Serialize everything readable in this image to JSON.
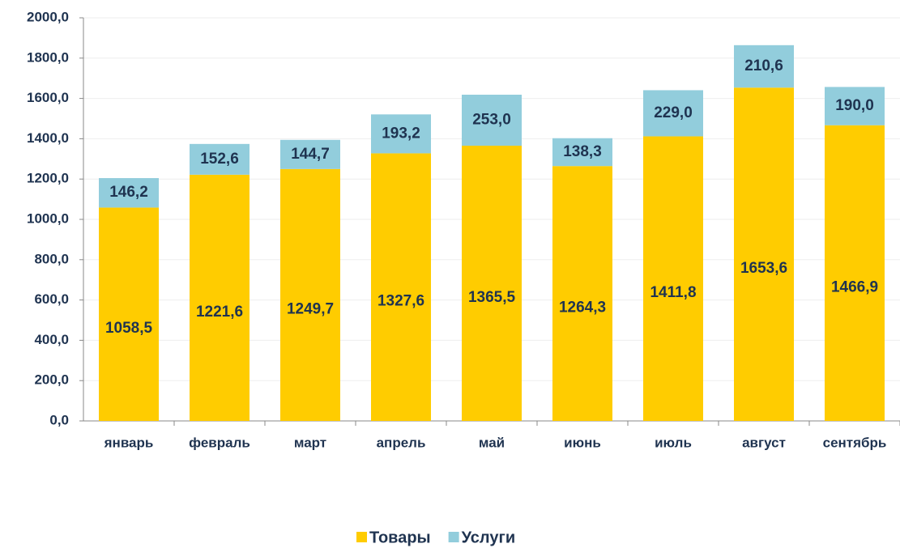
{
  "chart_data": {
    "type": "stacked_bar",
    "categories": [
      "январь",
      "февраль",
      "март",
      "апрель",
      "май",
      "июнь",
      "июль",
      "август",
      "сентябрь"
    ],
    "series": [
      {
        "name": "Товары",
        "color": "#ffcc00",
        "values": [
          1058.5,
          1221.6,
          1249.7,
          1327.6,
          1365.5,
          1264.3,
          1411.8,
          1653.6,
          1466.9
        ],
        "value_labels": [
          "1058,5",
          "1221,6",
          "1249,7",
          "1327,6",
          "1365,5",
          "1264,3",
          "1411,8",
          "1653,6",
          "1466,9"
        ]
      },
      {
        "name": "Услуги",
        "color": "#92cddc",
        "values": [
          146.2,
          152.6,
          144.7,
          193.2,
          253.0,
          138.3,
          229.0,
          210.6,
          190.0
        ],
        "value_labels": [
          "146,2",
          "152,6",
          "144,7",
          "193,2",
          "253,0",
          "138,3",
          "229,0",
          "210,6",
          "190,0"
        ]
      }
    ],
    "ylim": [
      0,
      2000
    ],
    "yticks": [
      {
        "value": 0,
        "label": "0,0"
      },
      {
        "value": 200,
        "label": "200,0"
      },
      {
        "value": 400,
        "label": "400,0"
      },
      {
        "value": 600,
        "label": "600,0"
      },
      {
        "value": 800,
        "label": "800,0"
      },
      {
        "value": 1000,
        "label": "1000,0"
      },
      {
        "value": 1200,
        "label": "1200,0"
      },
      {
        "value": 1400,
        "label": "1400,0"
      },
      {
        "value": 1600,
        "label": "1600,0"
      },
      {
        "value": 1800,
        "label": "1800,0"
      },
      {
        "value": 2000,
        "label": "2000,0"
      }
    ],
    "grid": true,
    "legend": "bottom"
  }
}
